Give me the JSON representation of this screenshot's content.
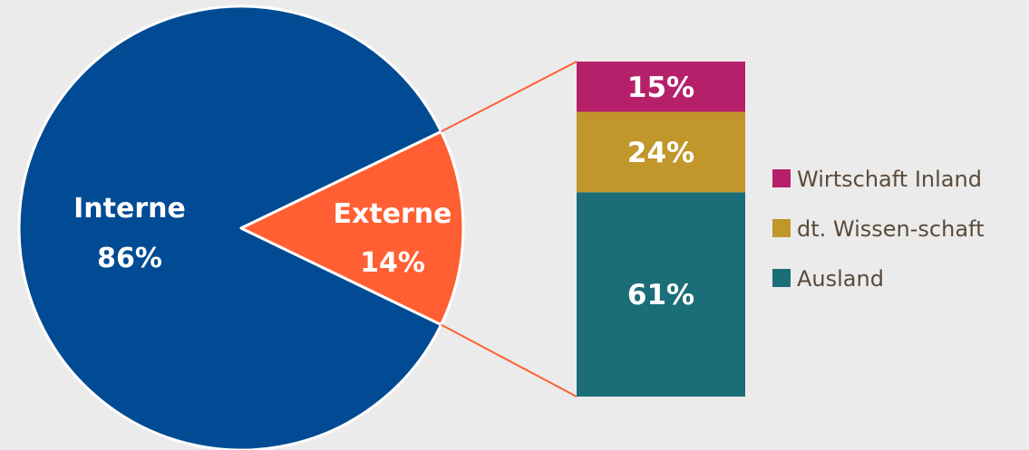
{
  "chart_data": [
    {
      "type": "pie",
      "slices": [
        {
          "name": "Interne",
          "value": 86,
          "label": "86%",
          "color": "#004b93"
        },
        {
          "name": "Externe",
          "value": 14,
          "label": "14%",
          "color": "#ff5f33"
        }
      ]
    },
    {
      "type": "bar",
      "stacked": true,
      "series": [
        {
          "name": "Ausland",
          "value": 61,
          "label": "61%",
          "color": "#1b6e77"
        },
        {
          "name": "dt. Wissen-schaft",
          "value": 24,
          "label": "24%",
          "color": "#c1972b"
        },
        {
          "name": "Wirtschaft Inland",
          "value": 15,
          "label": "15%",
          "color": "#b6206a"
        }
      ],
      "legend": {
        "position": "right",
        "order": [
          "Wirtschaft Inland",
          "dt. Wissen-schaft",
          "Ausland"
        ]
      }
    }
  ],
  "colors": {
    "background": "#ebebeb",
    "connector": "#ff5f33",
    "legend_text": "#5a4a3a",
    "label_text": "#ffffff"
  }
}
